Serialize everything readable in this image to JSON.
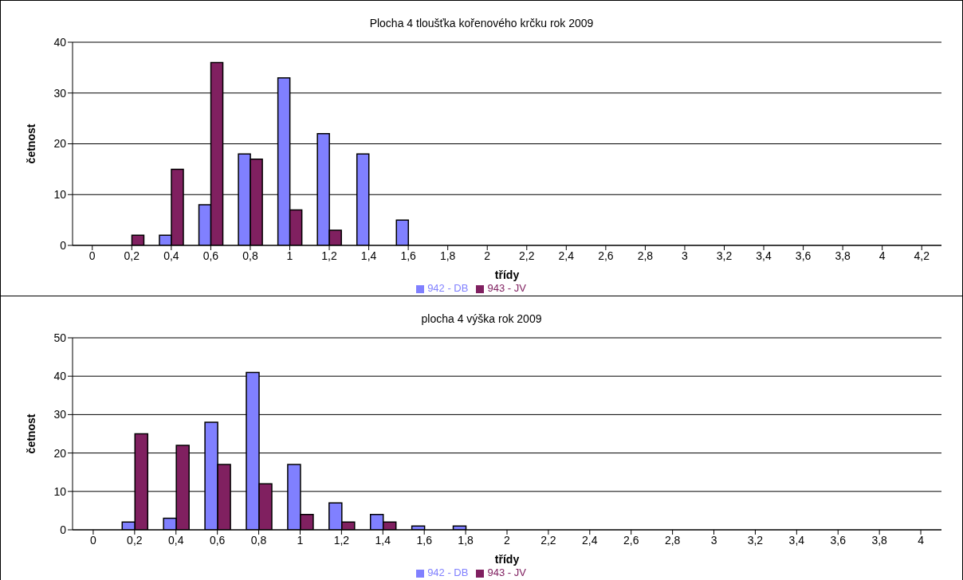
{
  "chart_data": [
    {
      "type": "bar",
      "title": "Plocha 4 tloušťka  kořenového  krčku rok 2009",
      "xlabel": "třídy",
      "ylabel": "četnost",
      "categories": [
        "0",
        "0,2",
        "0,4",
        "0,6",
        "0,8",
        "1",
        "1,2",
        "1,4",
        "1,6",
        "1,8",
        "2",
        "2,2",
        "2,4",
        "2,6",
        "2,8",
        "3",
        "3,2",
        "3,4",
        "3,6",
        "3,8",
        "4",
        "4,2"
      ],
      "series": [
        {
          "name": "942 - DB",
          "color": "#8080ff",
          "values": [
            0,
            0,
            2,
            8,
            18,
            33,
            22,
            18,
            5,
            0,
            0,
            0,
            0,
            0,
            0,
            0,
            0,
            0,
            0,
            0,
            0,
            0
          ]
        },
        {
          "name": "943 - JV",
          "color": "#802060",
          "values": [
            0,
            2,
            15,
            36,
            17,
            7,
            3,
            0,
            0,
            0,
            0,
            0,
            0,
            0,
            0,
            0,
            0,
            0,
            0,
            0,
            0,
            0
          ]
        }
      ],
      "ylim": [
        0,
        40
      ],
      "yticks": [
        0,
        10,
        20,
        30,
        40
      ],
      "grid": "y",
      "legend": "bottom"
    },
    {
      "type": "bar",
      "title": "plocha 4 výška rok 2009",
      "xlabel": "třídy",
      "ylabel": "četnost",
      "categories": [
        "0",
        "0,2",
        "0,4",
        "0,6",
        "0,8",
        "1",
        "1,2",
        "1,4",
        "1,6",
        "1,8",
        "2",
        "2,2",
        "2,4",
        "2,6",
        "2,8",
        "3",
        "3,2",
        "3,4",
        "3,6",
        "3,8",
        "4"
      ],
      "series": [
        {
          "name": "942 - DB",
          "color": "#8080ff",
          "values": [
            0,
            2,
            3,
            28,
            41,
            17,
            7,
            4,
            1,
            1,
            0,
            0,
            0,
            0,
            0,
            0,
            0,
            0,
            0,
            0,
            0
          ]
        },
        {
          "name": "943 - JV",
          "color": "#802060",
          "values": [
            0,
            25,
            22,
            17,
            12,
            4,
            2,
            2,
            0,
            0,
            0,
            0,
            0,
            0,
            0,
            0,
            0,
            0,
            0,
            0,
            0
          ]
        }
      ],
      "ylim": [
        0,
        50
      ],
      "yticks": [
        0,
        10,
        20,
        30,
        40,
        50
      ],
      "grid": "y",
      "legend": "bottom"
    }
  ]
}
